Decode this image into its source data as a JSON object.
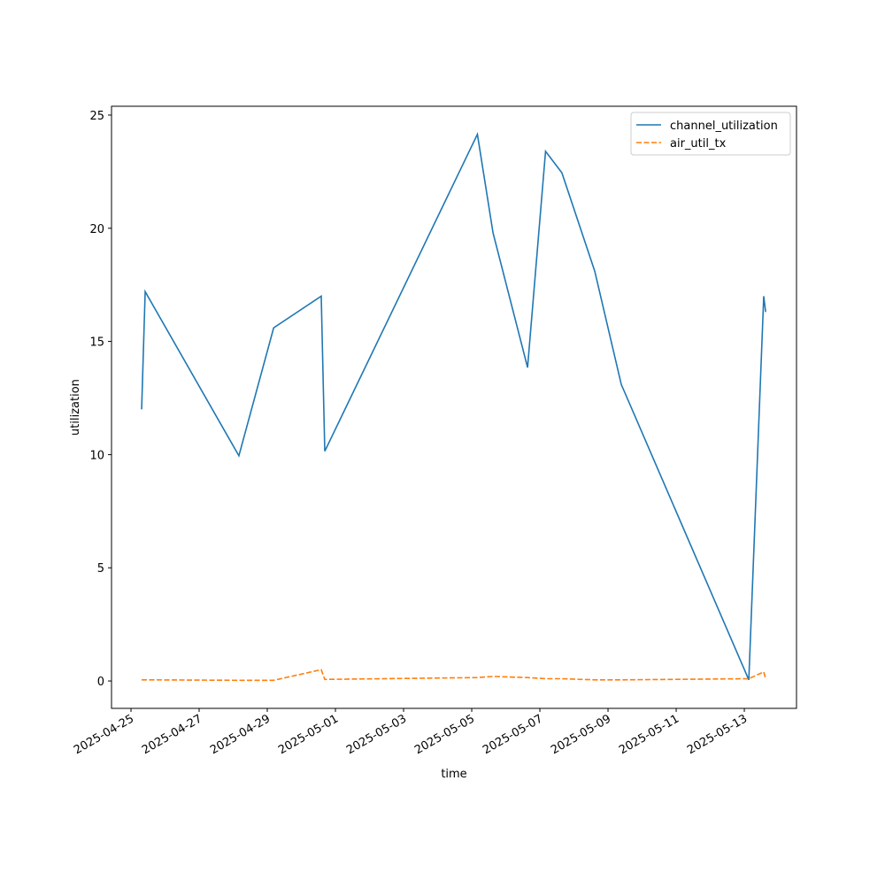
{
  "chart_data": {
    "type": "line",
    "xlabel": "time",
    "ylabel": "utilization",
    "x": [
      "2025-04-25T07:30",
      "2025-04-25T10:00",
      "2025-04-28T04:00",
      "2025-04-29T04:30",
      "2025-04-30T14:00",
      "2025-04-30T16:30",
      "2025-05-05T04:00",
      "2025-05-05T15:00",
      "2025-05-06T15:20",
      "2025-05-07T04:00",
      "2025-05-07T15:30",
      "2025-05-08T14:40",
      "2025-05-09T09:20",
      "2025-05-13T03:10",
      "2025-05-13T13:40",
      "2025-05-13T15:00"
    ],
    "series": [
      {
        "name": "channel_utilization",
        "color": "#1f77b4",
        "linestyle": "solid",
        "values": [
          12.0,
          17.2,
          9.95,
          15.6,
          17.0,
          10.15,
          24.15,
          19.8,
          13.85,
          23.4,
          22.45,
          18.1,
          13.1,
          0.05,
          17.0,
          16.3
        ]
      },
      {
        "name": "air_util_tx",
        "color": "#ff7f0e",
        "linestyle": "dashed",
        "values": [
          0.05,
          0.05,
          0.03,
          0.03,
          0.5,
          0.07,
          0.15,
          0.2,
          0.15,
          0.1,
          0.1,
          0.05,
          0.05,
          0.1,
          0.4,
          0.1
        ]
      }
    ],
    "xlim": [
      "2025-04-24T10:17",
      "2025-05-14T12:45"
    ],
    "xticks": [
      "2025-04-25",
      "2025-04-27",
      "2025-04-29",
      "2025-05-01",
      "2025-05-03",
      "2025-05-05",
      "2025-05-07",
      "2025-05-09",
      "2025-05-11",
      "2025-05-13"
    ],
    "ylim": [
      -1.21,
      25.39
    ],
    "yticks": [
      0,
      5,
      10,
      15,
      20,
      25
    ],
    "grid": false,
    "legend": "upper right"
  }
}
